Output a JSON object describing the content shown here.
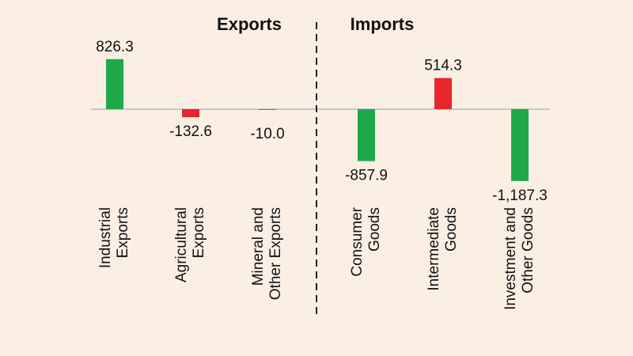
{
  "chart_data": {
    "type": "bar",
    "title": "",
    "groups": [
      {
        "label": "Exports"
      },
      {
        "label": "Imports"
      }
    ],
    "categories": [
      [
        "Industrial",
        "Exports"
      ],
      [
        "Agricultural",
        "Exports"
      ],
      [
        "Mineral and",
        "Other Exports"
      ],
      [
        "Consumer",
        "Goods"
      ],
      [
        "Intermediate",
        "Goods"
      ],
      [
        "Investment  and",
        "Other Goods"
      ]
    ],
    "values": [
      826.3,
      -132.6,
      -10.0,
      -857.9,
      514.3,
      -1187.3
    ],
    "value_labels": [
      "826.3",
      "-132.6",
      "-10.0",
      "-857.9",
      "514.3",
      "-1,187.3"
    ],
    "colors": {
      "positive": "#1fa84a",
      "negative": "#e8262a",
      "special_positive": "#e8262a",
      "special_negative": "#1fa84a",
      "bars": [
        "#1fa84a",
        "#e8262a",
        "#e8262a",
        "#1fa84a",
        "#e8262a",
        "#1fa84a"
      ]
    },
    "ylim": [
      -1250,
      950
    ],
    "legend": "none",
    "grid": false
  }
}
